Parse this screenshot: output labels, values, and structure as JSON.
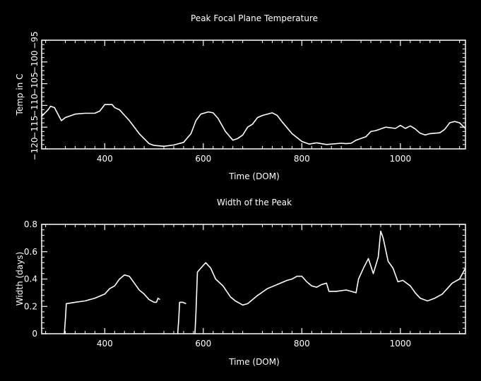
{
  "colors": {
    "background": "#000000",
    "foreground": "#ffffff"
  },
  "chart_data": [
    {
      "type": "line",
      "title": "Peak Focal Plane Temperature",
      "xlabel": "Time (DOM)",
      "ylabel": "Temp in C",
      "xlim": [
        272,
        1132
      ],
      "ylim": [
        -120,
        -95
      ],
      "xticks": [
        400,
        600,
        800,
        1000
      ],
      "xtick_labels": [
        "400",
        "600",
        "800",
        "1000"
      ],
      "yticks": [
        -120,
        -115,
        -110,
        -105,
        -100,
        -95
      ],
      "ytick_labels": [
        "−120",
        "−115",
        "−110",
        "−105",
        "−100",
        "−95"
      ],
      "grid": false,
      "series": [
        {
          "x": [
            272,
            285,
            290,
            298,
            305,
            312,
            320,
            340,
            360,
            380,
            390,
            400,
            415,
            420,
            430,
            450,
            470,
            490,
            500,
            520,
            540,
            560,
            575,
            585,
            595,
            610,
            620,
            630,
            645,
            660,
            670,
            680,
            690,
            700,
            710,
            720,
            740,
            750,
            760,
            780,
            800,
            815,
            830,
            850,
            880,
            890,
            900,
            910,
            930,
            940,
            950,
            970,
            990,
            1000,
            1010,
            1020,
            1030,
            1040,
            1050,
            1060,
            1080,
            1090,
            1100,
            1110,
            1120,
            1132
          ],
          "y": [
            -112.5,
            -111,
            -110.2,
            -110.5,
            -112,
            -113.5,
            -112.8,
            -112,
            -111.8,
            -111.8,
            -111.3,
            -109.8,
            -109.8,
            -110.5,
            -111,
            -113.5,
            -116.5,
            -118.8,
            -119.2,
            -119.4,
            -119.1,
            -118.5,
            -116.5,
            -113.5,
            -112,
            -111.5,
            -111.7,
            -113,
            -116,
            -118,
            -117.6,
            -116.8,
            -115,
            -114.3,
            -112.8,
            -112.3,
            -111.7,
            -112.3,
            -113.8,
            -116.5,
            -118.3,
            -118.9,
            -118.6,
            -119,
            -118.7,
            -118.8,
            -118.7,
            -118,
            -117.2,
            -116,
            -115.8,
            -115,
            -115.3,
            -114.6,
            -115.3,
            -114.7,
            -115.4,
            -116.4,
            -116.8,
            -116.5,
            -116.3,
            -115.5,
            -114,
            -113.7,
            -114,
            -115.3
          ]
        }
      ]
    },
    {
      "type": "line",
      "title": "Width of the Peak",
      "xlabel": "Time (DOM)",
      "ylabel": "Width (days)",
      "xlim": [
        272,
        1132
      ],
      "ylim": [
        0,
        0.8
      ],
      "xticks": [
        400,
        600,
        800,
        1000
      ],
      "xtick_labels": [
        "400",
        "600",
        "800",
        "1000"
      ],
      "yticks": [
        0,
        0.2,
        0.4,
        0.6,
        0.8
      ],
      "ytick_labels": [
        "0",
        "0.2",
        "0.4",
        "0.6",
        "0.8"
      ],
      "grid": false,
      "series": [
        {
          "segments": [
            {
              "x": [
                318,
                320,
                322,
                340,
                360,
                380,
                400,
                410,
                420,
                430,
                440,
                450,
                460,
                470,
                480,
                490,
                500,
                505,
                508,
                512
              ],
              "y": [
                0.0,
                0.1,
                0.22,
                0.23,
                0.24,
                0.26,
                0.29,
                0.33,
                0.35,
                0.4,
                0.43,
                0.42,
                0.37,
                0.32,
                0.29,
                0.25,
                0.23,
                0.23,
                0.26,
                0.25
              ]
            },
            {
              "x": [
                548,
                550,
                552,
                558,
                565
              ],
              "y": [
                0.0,
                0.1,
                0.23,
                0.23,
                0.22
              ]
            },
            {
              "x": [
                583,
                585,
                588,
                595,
                605,
                615,
                625,
                640,
                655,
                665,
                680,
                690,
                700,
                710,
                730,
                750,
                770,
                780,
                790,
                800,
                810,
                820,
                830,
                840,
                850,
                855,
                870,
                890,
                910,
                915,
                925,
                935,
                945,
                955,
                960,
                965,
                975,
                985,
                995,
                1005,
                1020,
                1030,
                1040,
                1055,
                1070,
                1085,
                1095,
                1105,
                1120,
                1132
              ],
              "y": [
                0.0,
                0.15,
                0.45,
                0.48,
                0.52,
                0.48,
                0.4,
                0.35,
                0.27,
                0.24,
                0.21,
                0.22,
                0.25,
                0.28,
                0.33,
                0.36,
                0.39,
                0.4,
                0.42,
                0.42,
                0.38,
                0.35,
                0.34,
                0.36,
                0.37,
                0.31,
                0.31,
                0.32,
                0.3,
                0.4,
                0.48,
                0.55,
                0.44,
                0.56,
                0.75,
                0.7,
                0.53,
                0.48,
                0.38,
                0.39,
                0.35,
                0.3,
                0.26,
                0.24,
                0.26,
                0.29,
                0.33,
                0.37,
                0.4,
                0.48
              ]
            }
          ]
        }
      ]
    }
  ]
}
